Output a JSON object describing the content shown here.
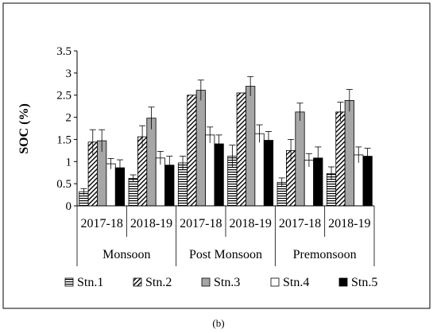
{
  "chart_data": {
    "type": "bar",
    "ylabel": "SOC (%)",
    "ylim": [
      0,
      3.5
    ],
    "yticks": [
      "0",
      "0.5",
      "1",
      "1.5",
      "2",
      "2.5",
      "3",
      "3.5"
    ],
    "grid": false,
    "legend_position": "bottom",
    "seasons": [
      "Monsoon",
      "Post Monsoon",
      "Premonsoon"
    ],
    "categories": [
      "2017-18",
      "2018-19",
      "2017-18",
      "2018-19",
      "2017-18",
      "2018-19"
    ],
    "series": [
      {
        "name": "Stn.1",
        "pattern": "horizontal-hatch",
        "values": [
          0.32,
          0.62,
          0.97,
          1.12,
          0.53,
          0.73
        ],
        "errors": [
          0.07,
          0.08,
          0.15,
          0.25,
          0.1,
          0.15
        ]
      },
      {
        "name": "Stn.2",
        "pattern": "diagonal-hatch",
        "values": [
          1.44,
          1.56,
          2.5,
          2.55,
          1.25,
          2.12
        ],
        "errors": [
          0.28,
          0.25,
          0.0,
          0.0,
          0.25,
          0.22
        ]
      },
      {
        "name": "Stn.3",
        "pattern": "solid-gray",
        "values": [
          1.47,
          1.98,
          2.61,
          2.7,
          2.12,
          2.38
        ],
        "errors": [
          0.25,
          0.25,
          0.23,
          0.22,
          0.2,
          0.25
        ]
      },
      {
        "name": "Stn.4",
        "pattern": "white",
        "values": [
          0.95,
          1.08,
          1.6,
          1.63,
          1.03,
          1.15
        ],
        "errors": [
          0.12,
          0.15,
          0.18,
          0.2,
          0.15,
          0.18
        ]
      },
      {
        "name": "Stn.5",
        "pattern": "solid-black",
        "values": [
          0.86,
          0.92,
          1.4,
          1.48,
          1.08,
          1.12
        ],
        "errors": [
          0.18,
          0.2,
          0.2,
          0.2,
          0.25,
          0.18
        ]
      }
    ],
    "colors": {
      "gray": "#a6a6a6",
      "black": "#000000",
      "white": "#ffffff"
    }
  },
  "caption": "(b)"
}
